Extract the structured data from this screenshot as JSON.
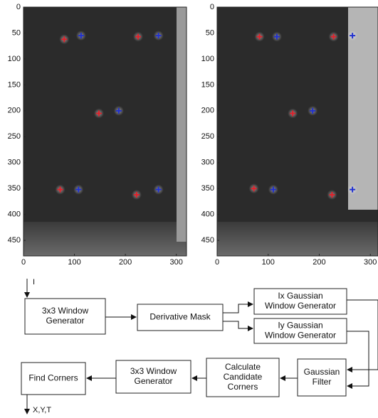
{
  "chart_data": [
    {
      "type": "scatter",
      "xlim": [
        0,
        320
      ],
      "ylim": [
        480,
        0
      ],
      "xticks": [
        0,
        100,
        200,
        300
      ],
      "yticks": [
        0,
        50,
        100,
        150,
        200,
        250,
        300,
        350,
        400,
        450
      ],
      "series": [
        {
          "color": "#e0202a",
          "x": [
            80,
            225,
            148,
            72,
            222
          ],
          "y": [
            62,
            57,
            205,
            352,
            362
          ]
        },
        {
          "color": "#2030d0",
          "x": [
            113,
            265,
            187,
            108,
            265
          ],
          "y": [
            55,
            55,
            200,
            352,
            352
          ]
        }
      ]
    },
    {
      "type": "scatter",
      "xlim": [
        0,
        315
      ],
      "ylim": [
        480,
        0
      ],
      "xticks": [
        0,
        100,
        200,
        300
      ],
      "yticks": [
        0,
        50,
        100,
        150,
        200,
        250,
        300,
        350,
        400,
        450
      ],
      "series": [
        {
          "color": "#e0202a",
          "x": [
            83,
            228,
            148,
            72,
            225
          ],
          "y": [
            57,
            57,
            205,
            350,
            362
          ]
        },
        {
          "color": "#2030d0",
          "x": [
            117,
            265,
            187,
            110,
            265
          ],
          "y": [
            57,
            55,
            200,
            352,
            352
          ]
        }
      ]
    }
  ],
  "diagram": {
    "input": "I",
    "output": "X,Y,T",
    "nodes": [
      {
        "label": [
          "3x3 Window",
          "Generator"
        ]
      },
      {
        "label": [
          "Derivative Mask"
        ]
      },
      {
        "label": [
          "Ix Gaussian",
          "Window Generator"
        ]
      },
      {
        "label": [
          "Iy Gaussian",
          "Window Generator"
        ]
      },
      {
        "label": [
          "Gaussian",
          "Filter"
        ]
      },
      {
        "label": [
          "Calculate",
          "Candidate",
          "Corners"
        ]
      },
      {
        "label": [
          "3x3 Window",
          "Generator"
        ]
      },
      {
        "label": [
          "Find Corners"
        ]
      }
    ]
  }
}
